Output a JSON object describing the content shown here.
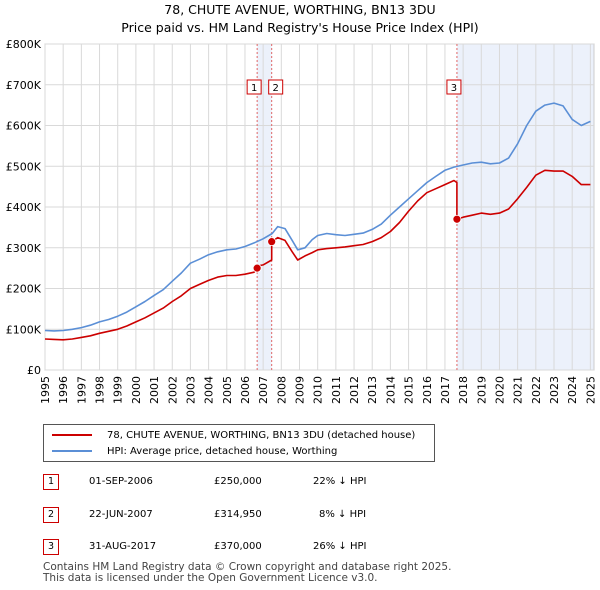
{
  "header": {
    "title": "78, CHUTE AVENUE, WORTHING, BN13 3DU",
    "subtitle": "Price paid vs. HM Land Registry's House Price Index (HPI)"
  },
  "chart_data": {
    "type": "line",
    "title": "78, CHUTE AVENUE, WORTHING, BN13 3DU",
    "subtitle": "Price paid vs. HM Land Registry's House Price Index (HPI)",
    "xlabel": "",
    "ylabel": "",
    "xlim": [
      1995,
      2025.2
    ],
    "ylim": [
      0,
      800000
    ],
    "y_ticks": [
      0,
      100000,
      200000,
      300000,
      400000,
      500000,
      600000,
      700000,
      800000
    ],
    "y_tick_labels": [
      "£0",
      "£100K",
      "£200K",
      "£300K",
      "£400K",
      "£500K",
      "£600K",
      "£700K",
      "£800K"
    ],
    "x_ticks": [
      1995,
      1996,
      1997,
      1998,
      1999,
      2000,
      2001,
      2002,
      2003,
      2004,
      2005,
      2006,
      2007,
      2008,
      2009,
      2010,
      2011,
      2012,
      2013,
      2014,
      2015,
      2016,
      2017,
      2018,
      2019,
      2020,
      2021,
      2022,
      2023,
      2024,
      2025
    ],
    "x_tick_labels": [
      "1995",
      "1996",
      "1997",
      "1998",
      "1999",
      "2000",
      "2001",
      "2002",
      "2003",
      "2004",
      "2005",
      "2006",
      "2007",
      "2008",
      "2009",
      "2010",
      "2011",
      "2012",
      "2013",
      "2014",
      "2015",
      "2016",
      "2017",
      "2018",
      "2019",
      "2020",
      "2021",
      "2022",
      "2023",
      "2024",
      "2025"
    ],
    "grid": true,
    "legend_position": "below",
    "series": [
      {
        "name": "78, CHUTE AVENUE, WORTHING, BN13 3DU (detached house)",
        "color": "#cc0000",
        "x": [
          1995.0,
          1995.5,
          1996.0,
          1996.5,
          1997.0,
          1997.5,
          1998.0,
          1998.5,
          1999.0,
          1999.5,
          2000.0,
          2000.5,
          2001.0,
          2001.5,
          2002.0,
          2002.5,
          2003.0,
          2003.5,
          2004.0,
          2004.5,
          2005.0,
          2005.5,
          2006.0,
          2006.5,
          2006.67,
          2006.67,
          2007.0,
          2007.47,
          2007.47,
          2007.8,
          2008.2,
          2008.6,
          2008.9,
          2009.3,
          2009.7,
          2010.0,
          2010.5,
          2011.0,
          2011.5,
          2012.0,
          2012.5,
          2013.0,
          2013.5,
          2014.0,
          2014.5,
          2015.0,
          2015.5,
          2016.0,
          2016.5,
          2017.0,
          2017.5,
          2017.66,
          2017.66,
          2018.0,
          2018.5,
          2019.0,
          2019.5,
          2020.0,
          2020.5,
          2021.0,
          2021.5,
          2022.0,
          2022.5,
          2023.0,
          2023.5,
          2024.0,
          2024.5,
          2025.0
        ],
        "values": [
          76000,
          75000,
          74000,
          76000,
          80000,
          84000,
          90000,
          95000,
          100000,
          108000,
          118000,
          128000,
          140000,
          152000,
          168000,
          182000,
          200000,
          210000,
          220000,
          228000,
          232000,
          232000,
          235000,
          240000,
          250000,
          255000,
          258000,
          270000,
          314950,
          325000,
          318000,
          290000,
          270000,
          280000,
          288000,
          295000,
          298000,
          300000,
          302000,
          305000,
          308000,
          315000,
          325000,
          340000,
          362000,
          390000,
          415000,
          435000,
          445000,
          455000,
          465000,
          460000,
          370000,
          375000,
          380000,
          385000,
          382000,
          385000,
          395000,
          420000,
          448000,
          478000,
          490000,
          488000,
          488000,
          475000,
          455000,
          455000
        ]
      },
      {
        "name": "HPI: Average price, detached house, Worthing",
        "color": "#5b8fd6",
        "x": [
          1995.0,
          1995.5,
          1996.0,
          1996.5,
          1997.0,
          1997.5,
          1998.0,
          1998.5,
          1999.0,
          1999.5,
          2000.0,
          2000.5,
          2001.0,
          2001.5,
          2002.0,
          2002.5,
          2003.0,
          2003.5,
          2004.0,
          2004.5,
          2005.0,
          2005.5,
          2006.0,
          2006.5,
          2007.0,
          2007.5,
          2007.8,
          2008.2,
          2008.6,
          2008.9,
          2009.3,
          2009.7,
          2010.0,
          2010.5,
          2011.0,
          2011.5,
          2012.0,
          2012.5,
          2013.0,
          2013.5,
          2014.0,
          2014.5,
          2015.0,
          2015.5,
          2016.0,
          2016.5,
          2017.0,
          2017.5,
          2018.0,
          2018.5,
          2019.0,
          2019.5,
          2020.0,
          2020.5,
          2021.0,
          2021.5,
          2022.0,
          2022.5,
          2023.0,
          2023.5,
          2024.0,
          2024.5,
          2025.0
        ],
        "values": [
          97000,
          96000,
          97000,
          100000,
          104000,
          110000,
          118000,
          124000,
          132000,
          142000,
          155000,
          168000,
          183000,
          197000,
          218000,
          238000,
          262000,
          272000,
          283000,
          290000,
          295000,
          297000,
          303000,
          312000,
          322000,
          335000,
          352000,
          347000,
          318000,
          295000,
          300000,
          320000,
          330000,
          335000,
          332000,
          330000,
          333000,
          336000,
          345000,
          358000,
          380000,
          400000,
          420000,
          440000,
          460000,
          475000,
          490000,
          498000,
          503000,
          508000,
          510000,
          506000,
          508000,
          520000,
          555000,
          600000,
          635000,
          650000,
          655000,
          648000,
          615000,
          600000,
          610000
        ]
      }
    ],
    "annotations": [
      {
        "label": "1",
        "date": "01-SEP-2006",
        "x": 2006.67,
        "price": 250000,
        "price_label": "£250,000",
        "hpi_note": "22% ↓ HPI"
      },
      {
        "label": "2",
        "date": "22-JUN-2007",
        "x": 2007.47,
        "price": 314950,
        "price_label": "£314,950",
        "hpi_note": "8% ↓ HPI"
      },
      {
        "label": "3",
        "date": "31-AUG-2017",
        "x": 2017.66,
        "price": 370000,
        "price_label": "£370,000",
        "hpi_note": "26% ↓ HPI"
      }
    ]
  },
  "legend": {
    "items": [
      {
        "label": "78, CHUTE AVENUE, WORTHING, BN13 3DU (detached house)",
        "color": "#cc0000"
      },
      {
        "label": "HPI: Average price, detached house, Worthing",
        "color": "#5b8fd6"
      }
    ]
  },
  "transactions": [
    {
      "num": "1",
      "date": "01-SEP-2006",
      "price": "£250,000",
      "hpi": "22% ↓ HPI"
    },
    {
      "num": "2",
      "date": "22-JUN-2007",
      "price": "£314,950",
      "hpi": "8% ↓ HPI"
    },
    {
      "num": "3",
      "date": "31-AUG-2017",
      "price": "£370,000",
      "hpi": "26% ↓ HPI"
    }
  ],
  "footer": {
    "line1": "Contains HM Land Registry data © Crown copyright and database right 2025.",
    "line2": "This data is licensed under the Open Government Licence v3.0."
  }
}
